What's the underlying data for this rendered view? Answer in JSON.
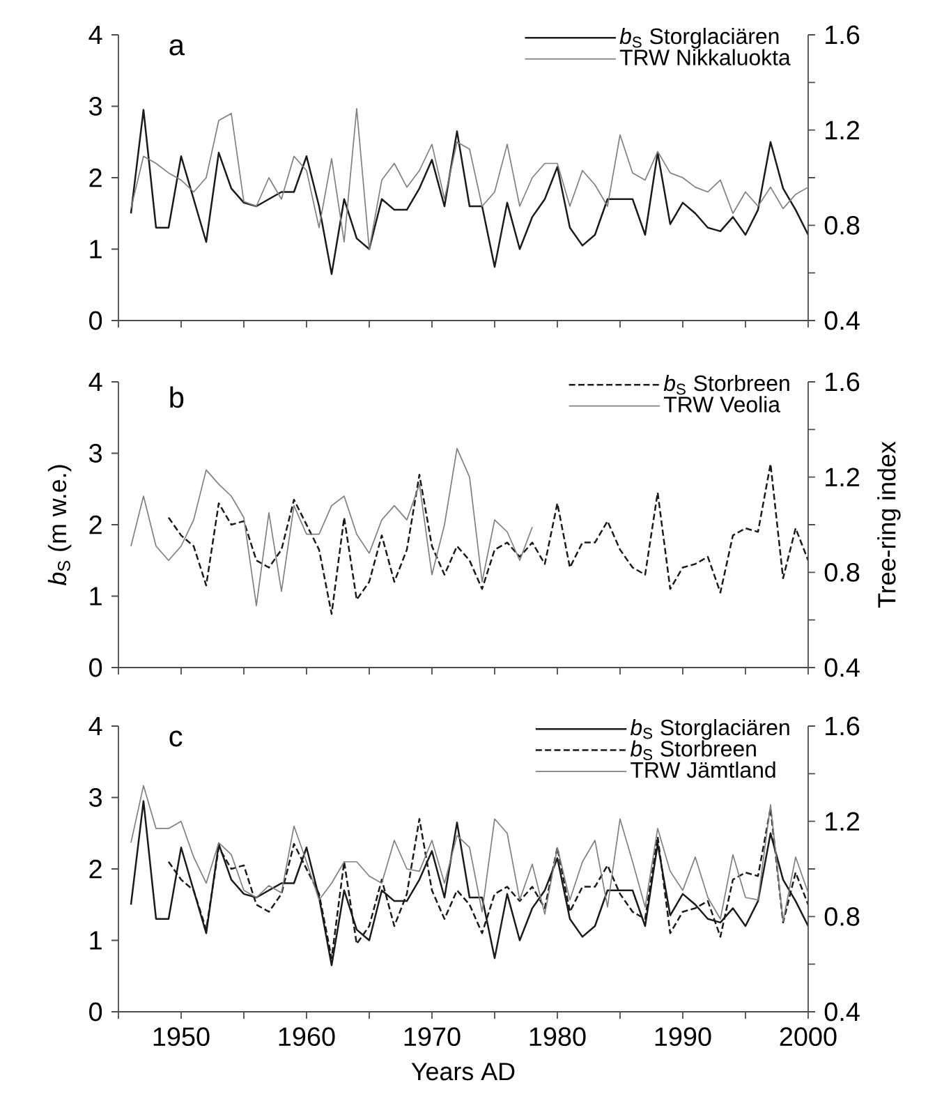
{
  "chart_data": [
    {
      "type": "line",
      "title": "a",
      "x": [
        1946,
        1947,
        1948,
        1949,
        1950,
        1951,
        1952,
        1953,
        1954,
        1955,
        1956,
        1957,
        1958,
        1959,
        1960,
        1961,
        1962,
        1963,
        1964,
        1965,
        1966,
        1967,
        1968,
        1969,
        1970,
        1971,
        1972,
        1973,
        1974,
        1975,
        1976,
        1977,
        1978,
        1979,
        1980,
        1981,
        1982,
        1983,
        1984,
        1985,
        1986,
        1987,
        1988,
        1989,
        1990,
        1991,
        1992,
        1993,
        1994,
        1995,
        1996,
        1997,
        1998,
        1999,
        2000
      ],
      "xlim": [
        1945,
        2000
      ],
      "xticks": [
        {
          "value": 1945,
          "label": null
        },
        1950,
        {
          "value": 1955,
          "label": null
        },
        1960,
        {
          "value": 1965,
          "label": null
        },
        1970,
        {
          "value": 1975,
          "label": null
        },
        1980,
        {
          "value": 1985,
          "label": null
        },
        1990,
        {
          "value": 1995,
          "label": null
        },
        2000
      ],
      "ylim": [
        0,
        4
      ],
      "yticks": [
        0,
        1,
        2,
        3,
        4
      ],
      "y2lim": [
        0.4,
        1.6
      ],
      "y2ticks": [
        0.4,
        {
          "value": 0.6,
          "label": null
        },
        0.8,
        {
          "value": 1.0,
          "label": null
        },
        1.2,
        {
          "value": 1.4,
          "label": null
        },
        1.6
      ],
      "tick_labels": "y",
      "legend": "top right",
      "marker": "none",
      "series": [
        {
          "name": "*b*$_{S}$ Storglaciären",
          "color": "#1a1a1a",
          "line_style": "solid",
          "values": [
            1.5,
            2.95,
            1.3,
            1.3,
            2.3,
            1.7,
            1.1,
            2.35,
            1.85,
            1.65,
            1.6,
            1.7,
            1.8,
            1.8,
            2.3,
            1.6,
            0.65,
            1.7,
            1.15,
            1.0,
            1.7,
            1.55,
            1.55,
            1.85,
            2.25,
            1.6,
            2.65,
            1.6,
            1.6,
            0.75,
            1.65,
            1.0,
            1.45,
            1.7,
            2.15,
            1.3,
            1.05,
            1.2,
            1.7,
            1.7,
            1.7,
            1.2,
            2.35,
            1.35,
            1.65,
            1.5,
            1.3,
            1.25,
            1.45,
            1.2,
            1.55,
            2.5,
            1.85,
            1.55,
            1.2
          ]
        },
        {
          "name": "TRW Nikkaluokta",
          "color": "#808080",
          "line_style": "solid",
          "axis": "y2",
          "values": [
            0.87,
            1.09,
            1.06,
            1.02,
            0.99,
            0.94,
            1.0,
            1.24,
            1.27,
            0.9,
            0.88,
            1.0,
            0.91,
            1.09,
            1.03,
            0.79,
            1.08,
            0.73,
            1.29,
            0.7,
            0.99,
            1.06,
            0.96,
            1.03,
            1.14,
            0.91,
            1.15,
            1.12,
            0.88,
            0.94,
            1.14,
            0.88,
            1.0,
            1.06,
            1.06,
            0.88,
            1.03,
            0.97,
            0.88,
            1.18,
            1.02,
            0.99,
            1.11,
            1.02,
            1.0,
            0.96,
            0.94,
            0.99,
            0.85,
            0.94,
            0.88,
            0.96,
            0.87,
            0.93,
            0.96
          ]
        }
      ]
    },
    {
      "type": "line",
      "title": "b",
      "ylabel": "*b*$_{S}$ (m w.e.)",
      "y2label": "Tree-ring index",
      "x": [
        1946,
        1947,
        1948,
        1949,
        1950,
        1951,
        1952,
        1953,
        1954,
        1955,
        1956,
        1957,
        1958,
        1959,
        1960,
        1961,
        1962,
        1963,
        1964,
        1965,
        1966,
        1967,
        1968,
        1969,
        1970,
        1971,
        1972,
        1973,
        1974,
        1975,
        1976,
        1977,
        1978,
        1979,
        1980,
        1981,
        1982,
        1983,
        1984,
        1985,
        1986,
        1987,
        1988,
        1989,
        1990,
        1991,
        1992,
        1993,
        1994,
        1995,
        1996,
        1997,
        1998,
        1999,
        2000
      ],
      "xlim": [
        1945,
        2000
      ],
      "xticks": [
        {
          "value": 1945,
          "label": null
        },
        1950,
        {
          "value": 1955,
          "label": null
        },
        1960,
        {
          "value": 1965,
          "label": null
        },
        1970,
        {
          "value": 1975,
          "label": null
        },
        1980,
        {
          "value": 1985,
          "label": null
        },
        1990,
        {
          "value": 1995,
          "label": null
        },
        2000
      ],
      "ylim": [
        0,
        4
      ],
      "yticks": [
        0,
        1,
        2,
        3,
        4
      ],
      "y2lim": [
        0.4,
        1.6
      ],
      "y2ticks": [
        0.4,
        {
          "value": 0.6,
          "label": null
        },
        0.8,
        {
          "value": 1.0,
          "label": null
        },
        1.2,
        {
          "value": 1.4,
          "label": null
        },
        1.6
      ],
      "tick_labels": "y",
      "legend": "top right",
      "marker": "none",
      "series": [
        {
          "name": "*b*$_{S}$ Storbreen",
          "color": "#1a1a1a",
          "line_style": "dashed",
          "values": [
            null,
            null,
            null,
            2.1,
            1.85,
            1.7,
            1.15,
            2.3,
            2.0,
            2.05,
            1.5,
            1.4,
            1.65,
            2.35,
            2.0,
            1.65,
            0.75,
            2.1,
            0.95,
            1.2,
            1.85,
            1.2,
            1.65,
            2.7,
            1.7,
            1.3,
            1.7,
            1.5,
            1.1,
            1.65,
            1.75,
            1.55,
            1.75,
            1.45,
            2.3,
            1.4,
            1.75,
            1.75,
            2.05,
            1.65,
            1.4,
            1.3,
            2.45,
            1.1,
            1.4,
            1.45,
            1.55,
            1.05,
            1.85,
            1.95,
            1.9,
            2.85,
            1.25,
            1.95,
            1.5
          ]
        },
        {
          "name": "TRW Veolia",
          "color": "#808080",
          "line_style": "solid",
          "axis": "y2",
          "values": [
            0.91,
            1.12,
            0.91,
            0.85,
            0.91,
            1.02,
            1.23,
            1.17,
            1.12,
            1.03,
            0.66,
            1.05,
            0.72,
            1.08,
            0.96,
            0.96,
            1.08,
            1.12,
            0.96,
            0.88,
            1.02,
            1.08,
            1.02,
            1.17,
            0.79,
            1.0,
            1.32,
            1.2,
            0.76,
            1.02,
            0.97,
            0.85,
            0.99,
            null,
            null,
            null,
            null,
            null,
            null,
            null,
            null,
            null,
            null,
            null,
            null,
            null,
            null,
            null,
            null,
            null,
            null,
            null,
            null,
            null,
            null
          ]
        }
      ]
    },
    {
      "type": "line",
      "title": "c",
      "xlabel": "Years AD",
      "x": [
        1946,
        1947,
        1948,
        1949,
        1950,
        1951,
        1952,
        1953,
        1954,
        1955,
        1956,
        1957,
        1958,
        1959,
        1960,
        1961,
        1962,
        1963,
        1964,
        1965,
        1966,
        1967,
        1968,
        1969,
        1970,
        1971,
        1972,
        1973,
        1974,
        1975,
        1976,
        1977,
        1978,
        1979,
        1980,
        1981,
        1982,
        1983,
        1984,
        1985,
        1986,
        1987,
        1988,
        1989,
        1990,
        1991,
        1992,
        1993,
        1994,
        1995,
        1996,
        1997,
        1998,
        1999,
        2000
      ],
      "xlim": [
        1945,
        2000
      ],
      "xticks": [
        {
          "value": 1945,
          "label": null
        },
        1950,
        {
          "value": 1955,
          "label": null
        },
        1960,
        {
          "value": 1965,
          "label": null
        },
        1970,
        {
          "value": 1975,
          "label": null
        },
        1980,
        {
          "value": 1985,
          "label": null
        },
        1990,
        {
          "value": 1995,
          "label": null
        },
        2000
      ],
      "ylim": [
        0,
        4
      ],
      "yticks": [
        0,
        1,
        2,
        3,
        4
      ],
      "y2lim": [
        0.4,
        1.6
      ],
      "y2ticks": [
        0.4,
        {
          "value": 0.6,
          "label": null
        },
        0.8,
        {
          "value": 1.0,
          "label": null
        },
        1.2,
        {
          "value": 1.4,
          "label": null
        },
        1.6
      ],
      "legend": "top right",
      "marker": "none",
      "series": [
        {
          "name": "*b*$_{S}$ Storglaciären",
          "color": "#1a1a1a",
          "line_style": "solid",
          "values": [
            1.5,
            2.95,
            1.3,
            1.3,
            2.3,
            1.7,
            1.1,
            2.35,
            1.85,
            1.65,
            1.6,
            1.7,
            1.8,
            1.8,
            2.3,
            1.6,
            0.65,
            1.7,
            1.15,
            1.0,
            1.7,
            1.55,
            1.55,
            1.85,
            2.25,
            1.6,
            2.65,
            1.6,
            1.6,
            0.75,
            1.65,
            1.0,
            1.45,
            1.7,
            2.15,
            1.3,
            1.05,
            1.2,
            1.7,
            1.7,
            1.7,
            1.2,
            2.35,
            1.35,
            1.65,
            1.5,
            1.3,
            1.25,
            1.45,
            1.2,
            1.55,
            2.5,
            1.85,
            1.55,
            1.2
          ]
        },
        {
          "name": "*b*$_{S}$ Storbreen",
          "color": "#1a1a1a",
          "line_style": "dashed",
          "values": [
            null,
            null,
            null,
            2.1,
            1.85,
            1.7,
            1.15,
            2.3,
            2.0,
            2.05,
            1.5,
            1.4,
            1.65,
            2.35,
            2.0,
            1.65,
            0.75,
            2.1,
            0.95,
            1.2,
            1.85,
            1.2,
            1.65,
            2.7,
            1.7,
            1.3,
            1.7,
            1.5,
            1.1,
            1.65,
            1.75,
            1.55,
            1.75,
            1.45,
            2.3,
            1.4,
            1.75,
            1.75,
            2.05,
            1.65,
            1.4,
            1.3,
            2.45,
            1.1,
            1.4,
            1.45,
            1.55,
            1.05,
            1.85,
            1.95,
            1.9,
            2.85,
            1.25,
            1.95,
            1.5
          ]
        },
        {
          "name": "TRW Jämtland",
          "color": "#808080",
          "line_style": "solid",
          "axis": "y2",
          "values": [
            1.11,
            1.35,
            1.17,
            1.17,
            1.2,
            1.05,
            0.94,
            1.11,
            1.06,
            0.91,
            0.88,
            0.93,
            0.9,
            1.18,
            1.03,
            0.87,
            0.94,
            1.03,
            1.03,
            0.97,
            0.94,
            1.12,
            1.0,
            0.99,
            1.12,
            0.94,
            1.14,
            1.09,
            0.82,
            1.21,
            1.15,
            0.87,
            1.02,
            0.81,
            1.09,
            0.87,
            1.03,
            1.12,
            0.84,
            1.21,
            1.03,
            0.84,
            1.17,
            0.99,
            0.91,
            1.05,
            0.88,
            0.79,
            1.06,
            0.88,
            0.87,
            1.27,
            0.78,
            1.05,
            0.9
          ]
        }
      ]
    }
  ]
}
